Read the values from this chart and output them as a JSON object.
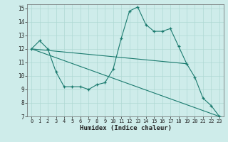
{
  "xlabel": "Humidex (Indice chaleur)",
  "xlim": [
    -0.5,
    23.5
  ],
  "ylim": [
    7,
    15.3
  ],
  "yticks": [
    7,
    8,
    9,
    10,
    11,
    12,
    13,
    14,
    15
  ],
  "xticks": [
    0,
    1,
    2,
    3,
    4,
    5,
    6,
    7,
    8,
    9,
    10,
    11,
    12,
    13,
    14,
    15,
    16,
    17,
    18,
    19,
    20,
    21,
    22,
    23
  ],
  "bg_color": "#ceecea",
  "grid_color": "#afd8d4",
  "line_color": "#1a7a6e",
  "line1_x": [
    0,
    1,
    2,
    3,
    4,
    5,
    6,
    7,
    8,
    9,
    10,
    11,
    12,
    13,
    14,
    15,
    16,
    17,
    18,
    19,
    20,
    21,
    22,
    23
  ],
  "line1_y": [
    12.0,
    12.6,
    12.0,
    10.3,
    9.2,
    9.2,
    9.2,
    9.0,
    9.35,
    9.5,
    10.5,
    12.8,
    14.8,
    15.1,
    13.8,
    13.3,
    13.3,
    13.5,
    12.2,
    10.9,
    9.9,
    8.35,
    7.8,
    7.0
  ],
  "line2_x": [
    0,
    23
  ],
  "line2_y": [
    12.0,
    7.0
  ],
  "line3_x": [
    0,
    19
  ],
  "line3_y": [
    12.0,
    10.9
  ]
}
